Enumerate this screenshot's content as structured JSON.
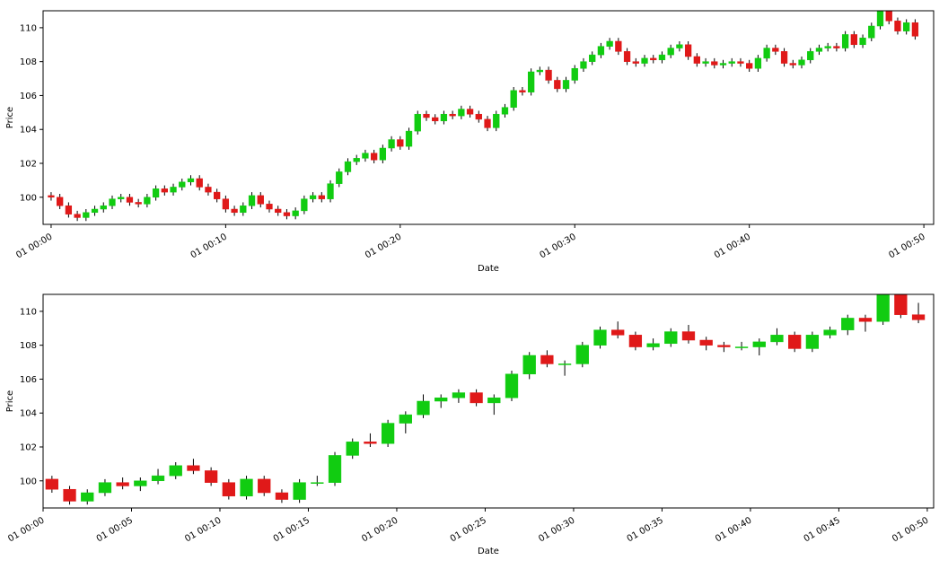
{
  "chart_data": [
    {
      "type": "candlestick",
      "xlabel": "Date",
      "ylabel": "Price",
      "up_color": "#11cc11",
      "down_color": "#e01919",
      "xlim": [
        -0.46,
        50.56
      ],
      "ylim": [
        98.4,
        111.0
      ],
      "xticks": [
        {
          "value": 0,
          "label": "01 00:00"
        },
        {
          "value": 10,
          "label": "01 00:10"
        },
        {
          "value": 20,
          "label": "01 00:20"
        },
        {
          "value": 30,
          "label": "01 00:30"
        },
        {
          "value": 40,
          "label": "01 00:40"
        },
        {
          "value": 50,
          "label": "01 00:50"
        }
      ],
      "yticks": [
        100,
        102,
        104,
        106,
        108,
        110
      ],
      "x": [
        0,
        0.5,
        1,
        1.5,
        2,
        2.5,
        3,
        3.5,
        4,
        4.5,
        5,
        5.5,
        6,
        6.5,
        7,
        7.5,
        8,
        8.5,
        9,
        9.5,
        10,
        10.5,
        11,
        11.5,
        12,
        12.5,
        13,
        13.5,
        14,
        14.5,
        15,
        15.5,
        16,
        16.5,
        17,
        17.5,
        18,
        18.5,
        19,
        19.5,
        20,
        20.5,
        21,
        21.5,
        22,
        22.5,
        23,
        23.5,
        24,
        24.5,
        25,
        25.5,
        26,
        26.5,
        27,
        27.5,
        28,
        28.5,
        29,
        29.5,
        30,
        30.5,
        31,
        31.5,
        32,
        32.5,
        33,
        33.5,
        34,
        34.5,
        35,
        35.5,
        36,
        36.5,
        37,
        37.5,
        38,
        38.5,
        39,
        39.5,
        40,
        40.5,
        41,
        41.5,
        42,
        42.5,
        43,
        43.5,
        44,
        44.5,
        45,
        45.5,
        46,
        46.5,
        47,
        47.5,
        48,
        48.5,
        49,
        49.5
      ],
      "open": [
        100.1,
        100.0,
        99.5,
        99.0,
        98.8,
        99.1,
        99.3,
        99.5,
        99.9,
        100.0,
        99.7,
        99.6,
        100.0,
        100.5,
        100.3,
        100.6,
        100.9,
        101.1,
        100.6,
        100.3,
        99.9,
        99.3,
        99.1,
        99.5,
        100.1,
        99.6,
        99.3,
        99.1,
        98.9,
        99.2,
        99.9,
        100.1,
        99.9,
        100.8,
        101.5,
        102.1,
        102.3,
        102.6,
        102.2,
        102.9,
        103.4,
        103.0,
        103.9,
        104.9,
        104.7,
        104.5,
        104.9,
        104.8,
        105.2,
        104.9,
        104.6,
        104.1,
        104.9,
        105.3,
        106.3,
        106.2,
        107.4,
        107.5,
        106.9,
        106.4,
        106.9,
        107.6,
        108.0,
        108.4,
        108.9,
        109.2,
        108.6,
        108.0,
        107.9,
        108.2,
        108.1,
        108.4,
        108.8,
        109.0,
        108.3,
        107.9,
        108.0,
        107.8,
        107.9,
        108.0,
        107.9,
        107.6,
        108.2,
        108.8,
        108.6,
        107.9,
        107.8,
        108.1,
        108.6,
        108.8,
        108.9,
        108.8,
        109.6,
        109.0,
        109.4,
        110.1,
        111.0,
        110.4,
        109.8,
        110.3
      ],
      "high": [
        100.3,
        100.2,
        99.7,
        99.2,
        99.3,
        99.5,
        99.7,
        100.1,
        100.2,
        100.2,
        99.9,
        100.2,
        100.7,
        100.7,
        100.8,
        101.1,
        101.3,
        101.3,
        100.8,
        100.5,
        100.1,
        99.5,
        99.7,
        100.3,
        100.3,
        99.8,
        99.5,
        99.3,
        99.4,
        100.1,
        100.3,
        100.3,
        101.0,
        101.7,
        102.3,
        102.5,
        102.8,
        102.8,
        103.1,
        103.6,
        103.6,
        104.1,
        105.1,
        105.1,
        104.9,
        105.1,
        105.1,
        105.4,
        105.4,
        105.1,
        104.8,
        105.1,
        105.5,
        106.5,
        106.5,
        107.6,
        107.7,
        107.7,
        107.1,
        107.1,
        107.8,
        108.2,
        108.6,
        109.1,
        109.4,
        109.4,
        108.8,
        108.2,
        108.4,
        108.4,
        108.6,
        109.0,
        109.2,
        109.2,
        108.5,
        108.2,
        108.2,
        108.1,
        108.2,
        108.2,
        108.1,
        108.4,
        109.0,
        109.0,
        108.8,
        108.1,
        108.3,
        108.8,
        109.0,
        109.1,
        109.1,
        109.8,
        109.8,
        109.6,
        110.3,
        111.2,
        111.2,
        110.6,
        110.5,
        110.5
      ],
      "low": [
        99.8,
        99.3,
        98.8,
        98.6,
        98.6,
        98.9,
        99.1,
        99.3,
        99.7,
        99.5,
        99.4,
        99.4,
        99.8,
        100.1,
        100.1,
        100.4,
        100.7,
        100.4,
        100.1,
        99.7,
        99.1,
        98.9,
        98.9,
        99.3,
        99.4,
        99.1,
        98.9,
        98.7,
        98.7,
        99.0,
        99.7,
        99.7,
        99.7,
        100.6,
        101.3,
        101.9,
        102.1,
        102.0,
        102.0,
        102.7,
        102.8,
        102.8,
        103.7,
        104.5,
        104.3,
        104.3,
        104.6,
        104.6,
        104.7,
        104.4,
        103.9,
        103.9,
        104.7,
        105.1,
        106.0,
        106.0,
        107.2,
        106.7,
        106.2,
        106.2,
        106.7,
        107.4,
        107.8,
        108.2,
        108.7,
        108.4,
        107.8,
        107.7,
        107.7,
        107.9,
        107.9,
        108.2,
        108.6,
        108.1,
        107.7,
        107.7,
        107.6,
        107.6,
        107.7,
        107.7,
        107.4,
        107.4,
        108.0,
        108.4,
        107.7,
        107.6,
        107.6,
        107.9,
        108.4,
        108.6,
        108.6,
        108.6,
        108.8,
        108.8,
        109.2,
        109.9,
        110.2,
        109.6,
        109.6,
        109.3
      ],
      "close": [
        100.0,
        99.5,
        99.0,
        98.8,
        99.1,
        99.3,
        99.5,
        99.9,
        100.0,
        99.7,
        99.6,
        100.0,
        100.5,
        100.3,
        100.6,
        100.9,
        101.1,
        100.6,
        100.3,
        99.9,
        99.3,
        99.1,
        99.5,
        100.1,
        99.6,
        99.3,
        99.1,
        98.9,
        99.2,
        99.9,
        100.1,
        99.9,
        100.8,
        101.5,
        102.1,
        102.3,
        102.6,
        102.2,
        102.9,
        103.4,
        103.0,
        103.9,
        104.9,
        104.7,
        104.5,
        104.9,
        104.8,
        105.2,
        104.9,
        104.6,
        104.1,
        104.9,
        105.3,
        106.3,
        106.2,
        107.4,
        107.5,
        106.9,
        106.4,
        106.9,
        107.6,
        108.0,
        108.4,
        108.9,
        109.2,
        108.6,
        108.0,
        107.9,
        108.2,
        108.1,
        108.4,
        108.8,
        109.0,
        108.3,
        107.9,
        108.0,
        107.8,
        107.9,
        108.0,
        107.9,
        107.6,
        108.2,
        108.8,
        108.6,
        107.9,
        107.8,
        108.1,
        108.6,
        108.8,
        108.9,
        108.8,
        109.6,
        109.0,
        109.4,
        110.1,
        111.0,
        110.4,
        109.8,
        110.3,
        109.5
      ]
    },
    {
      "type": "candlestick",
      "xlabel": "Date",
      "ylabel": "Price",
      "up_color": "#11cc11",
      "down_color": "#e01919",
      "xlim": [
        0,
        50.36
      ],
      "ylim": [
        98.4,
        111.0
      ],
      "xticks": [
        {
          "value": 0,
          "label": "01 00:00"
        },
        {
          "value": 5,
          "label": "01 00:05"
        },
        {
          "value": 10,
          "label": "01 00:10"
        },
        {
          "value": 15,
          "label": "01 00:15"
        },
        {
          "value": 20,
          "label": "01 00:20"
        },
        {
          "value": 25,
          "label": "01 00:25"
        },
        {
          "value": 30,
          "label": "01 00:30"
        },
        {
          "value": 35,
          "label": "01 00:35"
        },
        {
          "value": 40,
          "label": "01 00:40"
        },
        {
          "value": 45,
          "label": "01 00:45"
        },
        {
          "value": 50,
          "label": "01 00:50"
        }
      ],
      "yticks": [
        100,
        102,
        104,
        106,
        108,
        110
      ],
      "x": [
        0.5,
        1.5,
        2.5,
        3.5,
        4.5,
        5.5,
        6.5,
        7.5,
        8.5,
        9.5,
        10.5,
        11.5,
        12.5,
        13.5,
        14.5,
        15.5,
        16.5,
        17.5,
        18.5,
        19.5,
        20.5,
        21.5,
        22.5,
        23.5,
        24.5,
        25.5,
        26.5,
        27.5,
        28.5,
        29.5,
        30.5,
        31.5,
        32.5,
        33.5,
        34.5,
        35.5,
        36.5,
        37.5,
        38.5,
        39.5,
        40.5,
        41.5,
        42.5,
        43.5,
        44.5,
        45.5,
        46.5,
        47.5,
        48.5,
        49.5
      ],
      "open": [
        100.1,
        99.5,
        98.8,
        99.3,
        99.9,
        99.7,
        100.0,
        100.3,
        100.9,
        100.6,
        99.9,
        99.1,
        100.1,
        99.3,
        98.9,
        99.9,
        99.9,
        101.5,
        102.3,
        102.2,
        103.4,
        103.9,
        104.7,
        104.9,
        105.2,
        104.6,
        104.9,
        106.3,
        107.4,
        106.9,
        106.9,
        108.0,
        108.9,
        108.6,
        107.9,
        108.1,
        108.8,
        108.3,
        108.0,
        107.9,
        107.9,
        108.2,
        108.6,
        107.8,
        108.6,
        108.9,
        109.6,
        109.4,
        111.0,
        109.8
      ],
      "high": [
        100.3,
        99.7,
        99.5,
        100.1,
        100.2,
        100.2,
        100.7,
        101.1,
        101.3,
        100.8,
        100.1,
        100.3,
        100.3,
        99.5,
        100.1,
        100.3,
        101.7,
        102.5,
        102.8,
        103.6,
        104.1,
        105.1,
        105.1,
        105.4,
        105.4,
        105.1,
        106.5,
        107.6,
        107.7,
        107.1,
        108.2,
        109.1,
        109.4,
        108.8,
        108.4,
        109.0,
        109.2,
        108.5,
        108.2,
        108.2,
        108.4,
        109.0,
        108.8,
        108.8,
        109.1,
        109.8,
        109.8,
        111.2,
        111.2,
        110.5
      ],
      "low": [
        99.3,
        98.6,
        98.6,
        99.1,
        99.5,
        99.4,
        99.8,
        100.1,
        100.4,
        99.7,
        98.9,
        98.9,
        99.1,
        98.7,
        98.7,
        99.7,
        99.7,
        101.3,
        102.0,
        102.0,
        102.8,
        103.7,
        104.3,
        104.6,
        104.4,
        103.9,
        104.7,
        106.0,
        106.7,
        106.2,
        106.7,
        107.8,
        108.4,
        107.7,
        107.7,
        107.9,
        108.1,
        107.7,
        107.6,
        107.7,
        107.4,
        108.0,
        107.6,
        107.6,
        108.4,
        108.6,
        108.8,
        109.2,
        109.6,
        109.3
      ],
      "close": [
        99.5,
        98.8,
        99.3,
        99.9,
        99.7,
        100.0,
        100.3,
        100.9,
        100.6,
        99.9,
        99.1,
        100.1,
        99.3,
        98.9,
        99.9,
        99.9,
        101.5,
        102.3,
        102.2,
        103.4,
        103.9,
        104.7,
        104.9,
        105.2,
        104.6,
        104.9,
        106.3,
        107.4,
        106.9,
        106.9,
        108.0,
        108.9,
        108.6,
        107.9,
        108.1,
        108.8,
        108.3,
        108.0,
        107.9,
        107.9,
        108.2,
        108.6,
        107.8,
        108.6,
        108.9,
        109.6,
        109.4,
        111.0,
        109.8,
        109.5
      ]
    }
  ]
}
